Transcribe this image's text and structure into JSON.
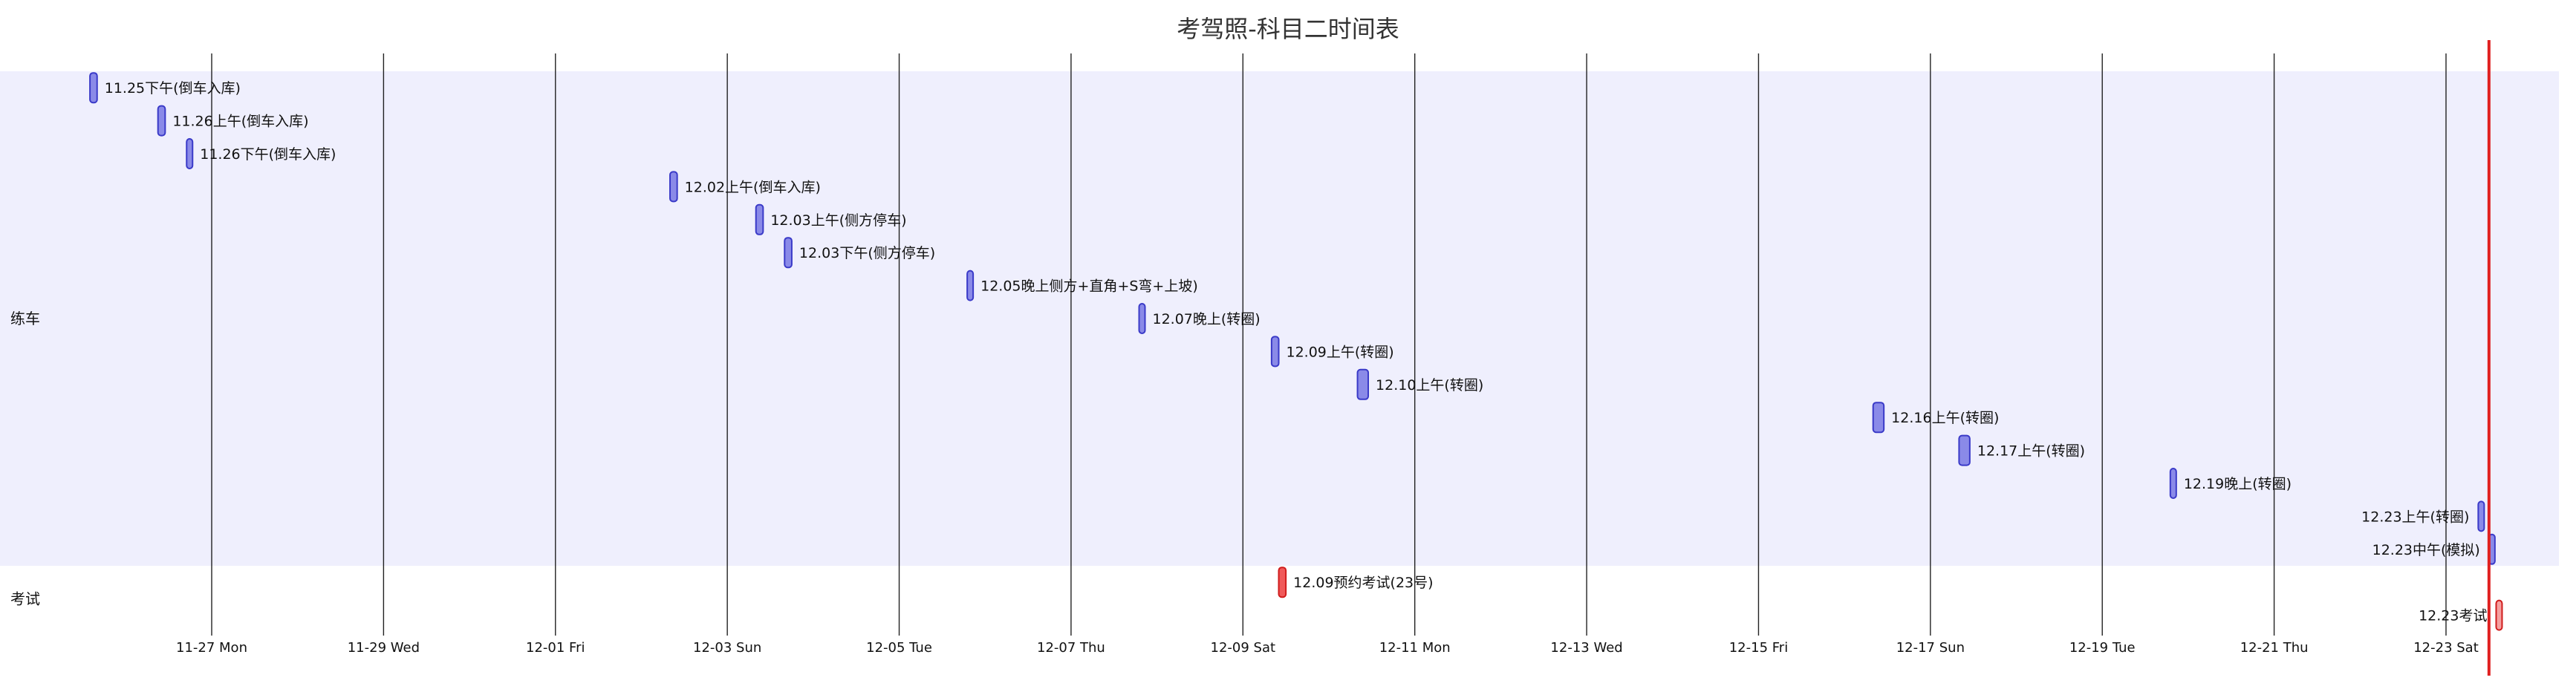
{
  "chart_data": {
    "type": "gantt",
    "title": "考驾照-科目二时间表",
    "x_axis": {
      "type": "date",
      "start": "2023-11-23",
      "end": "2023-12-23T23:00",
      "tick_labels": [
        {
          "date": "2023-11-27",
          "label": "11-27 Mon"
        },
        {
          "date": "2023-11-29",
          "label": "11-29 Wed"
        },
        {
          "date": "2023-12-01",
          "label": "12-01 Fri"
        },
        {
          "date": "2023-12-03",
          "label": "12-03 Sun"
        },
        {
          "date": "2023-12-05",
          "label": "12-05 Tue"
        },
        {
          "date": "2023-12-07",
          "label": "12-07 Thu"
        },
        {
          "date": "2023-12-09",
          "label": "12-09 Sat"
        },
        {
          "date": "2023-12-11",
          "label": "12-11 Mon"
        },
        {
          "date": "2023-12-13",
          "label": "12-13 Wed"
        },
        {
          "date": "2023-12-15",
          "label": "12-15 Fri"
        },
        {
          "date": "2023-12-17",
          "label": "12-17 Sun"
        },
        {
          "date": "2023-12-19",
          "label": "12-19 Tue"
        },
        {
          "date": "2023-12-21",
          "label": "12-21 Thu"
        },
        {
          "date": "2023-12-23",
          "label": "12-23 Sat"
        }
      ]
    },
    "today_marker": "2023-12-23T12:00",
    "sections": [
      {
        "name": "练车",
        "band_color": "#efeffd",
        "tasks": [
          {
            "label": "11.25下午(倒车入库)",
            "start": "2023-11-25T14:00",
            "end": "2023-11-25T16:00",
            "color": "#8a8ae8"
          },
          {
            "label": "11.26上午(倒车入库)",
            "start": "2023-11-26T09:00",
            "end": "2023-11-26T11:00",
            "color": "#8a8ae8"
          },
          {
            "label": "11.26下午(倒车入库)",
            "start": "2023-11-26T17:00",
            "end": "2023-11-26T18:00",
            "color": "#8a8ae8"
          },
          {
            "label": "12.02上午(倒车入库)",
            "start": "2023-12-02T08:00",
            "end": "2023-12-02T10:00",
            "color": "#8a8ae8"
          },
          {
            "label": "12.03上午(侧方停车)",
            "start": "2023-12-03T08:00",
            "end": "2023-12-03T10:00",
            "color": "#8a8ae8"
          },
          {
            "label": "12.03下午(侧方停车)",
            "start": "2023-12-03T16:00",
            "end": "2023-12-03T18:00",
            "color": "#8a8ae8"
          },
          {
            "label": "12.05晚上侧方+直角+S弯+上坡)",
            "start": "2023-12-05T19:00",
            "end": "2023-12-05T20:30",
            "color": "#8a8ae8"
          },
          {
            "label": "12.07晚上(转圈)",
            "start": "2023-12-07T19:00",
            "end": "2023-12-07T20:00",
            "color": "#8a8ae8"
          },
          {
            "label": "12.09上午(转圈)",
            "start": "2023-12-09T08:00",
            "end": "2023-12-09T10:00",
            "color": "#8a8ae8"
          },
          {
            "label": "12.10上午(转圈)",
            "start": "2023-12-10T08:00",
            "end": "2023-12-10T11:00",
            "color": "#8a8ae8"
          },
          {
            "label": "12.16上午(转圈)",
            "start": "2023-12-16T08:00",
            "end": "2023-12-16T11:00",
            "color": "#8a8ae8"
          },
          {
            "label": "12.17上午(转圈)",
            "start": "2023-12-17T08:00",
            "end": "2023-12-17T11:00",
            "color": "#8a8ae8"
          },
          {
            "label": "12.19晚上(转圈)",
            "start": "2023-12-19T19:00",
            "end": "2023-12-19T20:30",
            "color": "#8a8ae8"
          },
          {
            "label": "12.23上午(转圈)",
            "start": "2023-12-23T09:00",
            "end": "2023-12-23T10:30",
            "color": "#8a8ae8",
            "label_side": "left"
          },
          {
            "label": "12.23中午(模拟)",
            "start": "2023-12-23T12:00",
            "end": "2023-12-23T13:30",
            "color": "#8a8ae8",
            "label_side": "left"
          }
        ]
      },
      {
        "name": "考试",
        "band_color": "#ffffff",
        "tasks": [
          {
            "label": "12.09预约考试(23号)",
            "start": "2023-12-09T10:00",
            "end": "2023-12-09T12:00",
            "color": "#f05a5a"
          },
          {
            "label": "12.23考试",
            "start": "2023-12-23T14:00",
            "end": "2023-12-23T15:30",
            "color": "#f5a0a0",
            "label_side": "left"
          }
        ]
      }
    ],
    "colors": {
      "task_fill": "#8a8ae8",
      "task_stroke": "#3a3ac8",
      "crit_fill": "#f05a5a",
      "crit_stroke": "#d01c1c",
      "today_line": "#e02020",
      "grid_line": "#222222",
      "text": "#111111",
      "title_text": "#333333"
    }
  }
}
